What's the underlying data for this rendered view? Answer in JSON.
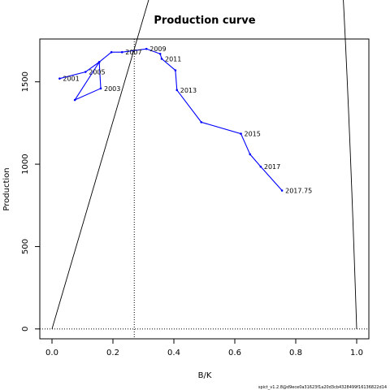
{
  "chart_data": {
    "type": "line",
    "title": "Production curve",
    "xlabel": "B/K",
    "ylabel": "Production",
    "xlim": [
      -0.04,
      1.04
    ],
    "ylim": [
      -60,
      1760
    ],
    "x_ticks": [
      "0.0",
      "0.2",
      "0.4",
      "0.6",
      "0.8",
      "1.0"
    ],
    "y_ticks": [
      "0",
      "500",
      "1000",
      "1500"
    ],
    "bmsy_k": 0.27,
    "production_curve": {
      "name": "",
      "color": "#000000",
      "k_max": 1.0,
      "msy": 1700,
      "bmsy_k": 0.27
    },
    "trajectory": {
      "color": "#0000ff",
      "x": [
        0.025,
        0.11,
        0.155,
        0.075,
        0.16,
        0.155,
        0.195,
        0.23,
        0.31,
        0.355,
        0.36,
        0.405,
        0.41,
        0.49,
        0.62,
        0.65,
        0.685,
        0.755
      ],
      "y": [
        1520,
        1560,
        1620,
        1390,
        1460,
        1620,
        1680,
        1680,
        1700,
        1670,
        1640,
        1570,
        1450,
        1255,
        1185,
        1060,
        985,
        840
      ]
    },
    "year_labels": [
      {
        "year": "2001",
        "x": 0.025,
        "y": 1520
      },
      {
        "year": "2003",
        "x": 0.16,
        "y": 1460
      },
      {
        "year": "2005",
        "x": 0.11,
        "y": 1560
      },
      {
        "year": "2007",
        "x": 0.23,
        "y": 1680
      },
      {
        "year": "2009",
        "x": 0.31,
        "y": 1700
      },
      {
        "year": "2011",
        "x": 0.36,
        "y": 1640
      },
      {
        "year": "2013",
        "x": 0.41,
        "y": 1450
      },
      {
        "year": "2015",
        "x": 0.62,
        "y": 1185
      },
      {
        "year": "2017",
        "x": 0.685,
        "y": 985
      },
      {
        "year": "2017.75",
        "x": 0.755,
        "y": 840
      }
    ],
    "footer": "spict_v1.2.8@d9ece0a31623f1a20d3cb4328499f16136822d14"
  }
}
